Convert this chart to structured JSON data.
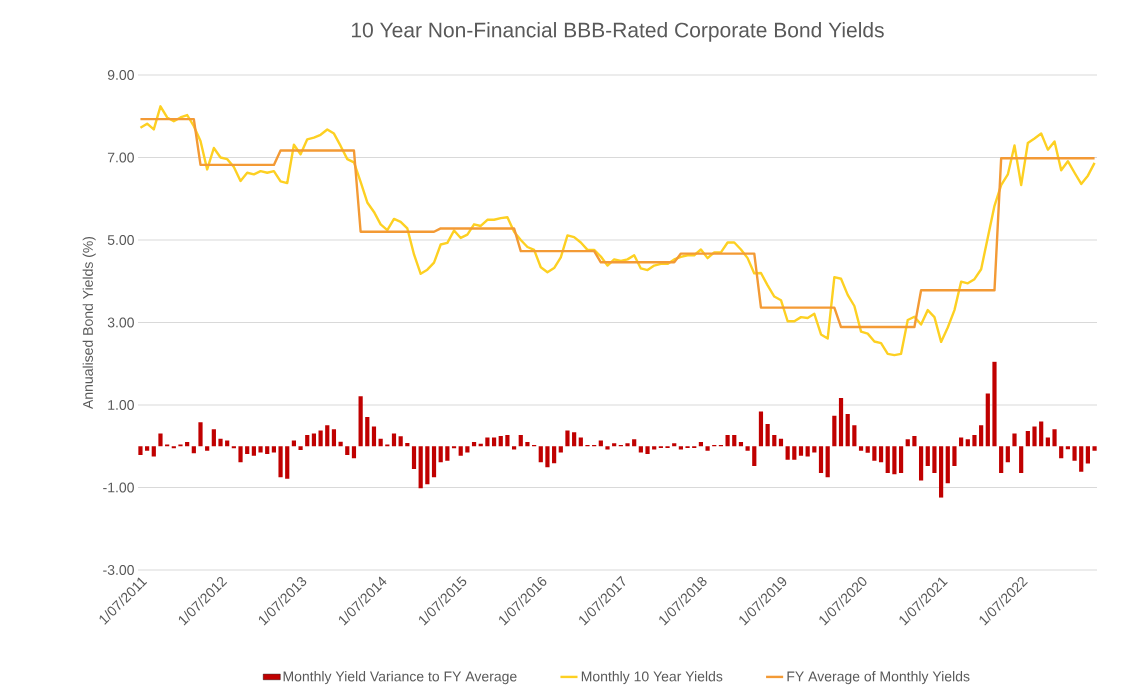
{
  "chart_data": {
    "type": "bar",
    "title": "10 Year Non-Financial BBB-Rated Corporate Bond Yields",
    "ylabel": "Annualised Bond Yields (%)",
    "x": [
      "2011-07",
      "2011-08",
      "2011-09",
      "2011-10",
      "2011-11",
      "2011-12",
      "2012-01",
      "2012-02",
      "2012-03",
      "2012-04",
      "2012-05",
      "2012-06",
      "2012-07",
      "2012-08",
      "2012-09",
      "2012-10",
      "2012-11",
      "2012-12",
      "2013-01",
      "2013-02",
      "2013-03",
      "2013-04",
      "2013-05",
      "2013-06",
      "2013-07",
      "2013-08",
      "2013-09",
      "2013-10",
      "2013-11",
      "2013-12",
      "2014-01",
      "2014-02",
      "2014-03",
      "2014-04",
      "2014-05",
      "2014-06",
      "2014-07",
      "2014-08",
      "2014-09",
      "2014-10",
      "2014-11",
      "2014-12",
      "2015-01",
      "2015-02",
      "2015-03",
      "2015-04",
      "2015-05",
      "2015-06",
      "2015-07",
      "2015-08",
      "2015-09",
      "2015-10",
      "2015-11",
      "2015-12",
      "2016-01",
      "2016-02",
      "2016-03",
      "2016-04",
      "2016-05",
      "2016-06",
      "2016-07",
      "2016-08",
      "2016-09",
      "2016-10",
      "2016-11",
      "2016-12",
      "2017-01",
      "2017-02",
      "2017-03",
      "2017-04",
      "2017-05",
      "2017-06",
      "2017-07",
      "2017-08",
      "2017-09",
      "2017-10",
      "2017-11",
      "2017-12",
      "2018-01",
      "2018-02",
      "2018-03",
      "2018-04",
      "2018-05",
      "2018-06",
      "2018-07",
      "2018-08",
      "2018-09",
      "2018-10",
      "2018-11",
      "2018-12",
      "2019-01",
      "2019-02",
      "2019-03",
      "2019-04",
      "2019-05",
      "2019-06",
      "2019-07",
      "2019-08",
      "2019-09",
      "2019-10",
      "2019-11",
      "2019-12",
      "2020-01",
      "2020-02",
      "2020-03",
      "2020-04",
      "2020-05",
      "2020-06",
      "2020-07",
      "2020-08",
      "2020-09",
      "2020-10",
      "2020-11",
      "2020-12",
      "2021-01",
      "2021-02",
      "2021-03",
      "2021-04",
      "2021-05",
      "2021-06",
      "2021-07",
      "2021-08",
      "2021-09",
      "2021-10",
      "2021-11",
      "2021-12",
      "2022-01",
      "2022-02",
      "2022-03",
      "2022-04",
      "2022-05",
      "2022-06",
      "2022-07",
      "2022-08",
      "2022-09",
      "2022-10",
      "2022-11",
      "2022-12",
      "2023-01",
      "2023-02",
      "2023-03",
      "2023-04",
      "2023-05",
      "2023-06"
    ],
    "series": [
      {
        "name": "Monthly Yield Variance to FY Average",
        "color": "#c00000",
        "values": [
          -0.21,
          -0.11,
          -0.25,
          0.31,
          0.04,
          -0.05,
          0.04,
          0.1,
          -0.17,
          0.58,
          -0.11,
          0.41,
          0.18,
          0.14,
          -0.05,
          -0.39,
          -0.19,
          -0.23,
          -0.15,
          -0.19,
          -0.15,
          -0.75,
          -0.79,
          0.14,
          -0.09,
          0.27,
          0.31,
          0.38,
          0.51,
          0.41,
          0.11,
          -0.21,
          -0.29,
          1.21,
          0.71,
          0.48,
          0.18,
          0.04,
          0.31,
          0.24,
          0.08,
          -0.55,
          -1.02,
          -0.92,
          -0.75,
          -0.39,
          -0.35,
          -0.05,
          -0.23,
          -0.15,
          0.1,
          0.06,
          0.21,
          0.21,
          0.25,
          0.27,
          -0.08,
          0.27,
          0.1,
          0.03,
          -0.39,
          -0.51,
          -0.41,
          -0.15,
          0.38,
          0.34,
          0.21,
          0.03,
          0.03,
          0.14,
          -0.08,
          0.07,
          0.03,
          0.07,
          0.17,
          -0.15,
          -0.19,
          -0.08,
          -0.04,
          -0.04,
          0.07,
          -0.08,
          -0.04,
          -0.04,
          0.1,
          -0.11,
          0.03,
          0.03,
          0.27,
          0.27,
          0.1,
          -0.11,
          -0.48,
          0.84,
          0.54,
          0.27,
          0.18,
          -0.33,
          -0.33,
          -0.23,
          -0.25,
          -0.15,
          -0.65,
          -0.75,
          0.74,
          1.17,
          0.78,
          0.51,
          -0.11,
          -0.16,
          -0.35,
          -0.39,
          -0.65,
          -0.68,
          -0.65,
          0.17,
          0.25,
          -0.83,
          -0.48,
          -0.65,
          -1.25,
          -0.9,
          -0.48,
          0.21,
          0.17,
          0.27,
          0.51,
          1.28,
          2.05,
          -0.65,
          -0.39,
          0.31,
          -0.65,
          0.37,
          0.48,
          0.6,
          0.21,
          0.41,
          -0.29,
          -0.07,
          -0.35,
          -0.62,
          -0.42,
          -0.11
        ]
      },
      {
        "name": "Monthly 10 Year Yields",
        "type": "line",
        "color": "#fdd022",
        "values": [
          7.72,
          7.82,
          7.68,
          8.24,
          7.97,
          7.88,
          7.97,
          8.03,
          7.76,
          7.4,
          6.71,
          7.23,
          7.0,
          6.96,
          6.77,
          6.43,
          6.63,
          6.59,
          6.67,
          6.63,
          6.67,
          6.42,
          6.38,
          7.31,
          7.08,
          7.44,
          7.48,
          7.55,
          7.68,
          7.58,
          7.28,
          6.96,
          6.88,
          6.41,
          5.91,
          5.68,
          5.38,
          5.24,
          5.51,
          5.44,
          5.28,
          4.65,
          4.18,
          4.28,
          4.45,
          4.89,
          4.93,
          5.23,
          5.05,
          5.13,
          5.38,
          5.34,
          5.49,
          5.49,
          5.53,
          5.55,
          5.2,
          5.0,
          4.83,
          4.76,
          4.34,
          4.22,
          4.32,
          4.58,
          5.11,
          5.07,
          4.94,
          4.76,
          4.76,
          4.6,
          4.38,
          4.53,
          4.49,
          4.53,
          4.63,
          4.31,
          4.27,
          4.38,
          4.42,
          4.42,
          4.53,
          4.59,
          4.63,
          4.63,
          4.77,
          4.56,
          4.7,
          4.7,
          4.94,
          4.94,
          4.77,
          4.56,
          4.19,
          4.2,
          3.9,
          3.63,
          3.54,
          3.03,
          3.03,
          3.13,
          3.11,
          3.21,
          2.71,
          2.61,
          4.1,
          4.06,
          3.67,
          3.4,
          2.78,
          2.73,
          2.54,
          2.5,
          2.24,
          2.21,
          2.24,
          3.06,
          3.14,
          2.95,
          3.3,
          3.13,
          2.53,
          2.88,
          3.3,
          3.99,
          3.95,
          4.05,
          4.29,
          5.06,
          5.83,
          6.33,
          6.59,
          7.29,
          6.33,
          7.35,
          7.46,
          7.58,
          7.19,
          7.39,
          6.69,
          6.91,
          6.63,
          6.36,
          6.56,
          6.87
        ]
      },
      {
        "name": "FY Average of Monthly Yields",
        "type": "line",
        "color": "#f39a35",
        "values": [
          7.93,
          7.93,
          7.93,
          7.93,
          7.93,
          7.93,
          7.93,
          7.93,
          7.93,
          6.82,
          6.82,
          6.82,
          6.82,
          6.82,
          6.82,
          6.82,
          6.82,
          6.82,
          6.82,
          6.82,
          6.82,
          7.17,
          7.17,
          7.17,
          7.17,
          7.17,
          7.17,
          7.17,
          7.17,
          7.17,
          7.17,
          7.17,
          7.17,
          5.2,
          5.2,
          5.2,
          5.2,
          5.2,
          5.2,
          5.2,
          5.2,
          5.2,
          5.2,
          5.2,
          5.2,
          5.28,
          5.28,
          5.28,
          5.28,
          5.28,
          5.28,
          5.28,
          5.28,
          5.28,
          5.28,
          5.28,
          5.28,
          4.73,
          4.73,
          4.73,
          4.73,
          4.73,
          4.73,
          4.73,
          4.73,
          4.73,
          4.73,
          4.73,
          4.73,
          4.46,
          4.46,
          4.46,
          4.46,
          4.46,
          4.46,
          4.46,
          4.46,
          4.46,
          4.46,
          4.46,
          4.46,
          4.67,
          4.67,
          4.67,
          4.67,
          4.67,
          4.67,
          4.67,
          4.67,
          4.67,
          4.67,
          4.67,
          4.67,
          3.36,
          3.36,
          3.36,
          3.36,
          3.36,
          3.36,
          3.36,
          3.36,
          3.36,
          3.36,
          3.36,
          3.36,
          2.89,
          2.89,
          2.89,
          2.89,
          2.89,
          2.89,
          2.89,
          2.89,
          2.89,
          2.89,
          2.89,
          2.89,
          3.78,
          3.78,
          3.78,
          3.78,
          3.78,
          3.78,
          3.78,
          3.78,
          3.78,
          3.78,
          3.78,
          3.78,
          6.98,
          6.98,
          6.98,
          6.98,
          6.98,
          6.98,
          6.98,
          6.98,
          6.98,
          6.98,
          6.98,
          6.98,
          6.98,
          6.98,
          6.98
        ]
      }
    ],
    "xlim": [
      "2011-06-20",
      "2023-06-12"
    ],
    "xticks": [
      {
        "value": "2011-07",
        "label": "1/07/2011"
      },
      {
        "value": "2012-07",
        "label": "1/07/2012"
      },
      {
        "value": "2013-07",
        "label": "1/07/2013"
      },
      {
        "value": "2014-07",
        "label": "1/07/2014"
      },
      {
        "value": "2015-07",
        "label": "1/07/2015"
      },
      {
        "value": "2016-07",
        "label": "1/07/2016"
      },
      {
        "value": "2017-07",
        "label": "1/07/2017"
      },
      {
        "value": "2018-07",
        "label": "1/07/2018"
      },
      {
        "value": "2019-07",
        "label": "1/07/2019"
      },
      {
        "value": "2020-07",
        "label": "1/07/2020"
      },
      {
        "value": "2021-07",
        "label": "1/07/2021"
      },
      {
        "value": "2022-07",
        "label": "1/07/2022"
      }
    ],
    "ylim": [
      -3,
      9
    ],
    "yticks": [
      {
        "value": -3,
        "label": "-3.00"
      },
      {
        "value": -1,
        "label": "-1.00"
      },
      {
        "value": 1,
        "label": "1.00"
      },
      {
        "value": 3,
        "label": "3.00"
      },
      {
        "value": 5,
        "label": "5.00"
      },
      {
        "value": 7,
        "label": "7.00"
      },
      {
        "value": 9,
        "label": "9.00"
      }
    ],
    "grid": "y",
    "legend": "bottom",
    "marker": "none"
  }
}
